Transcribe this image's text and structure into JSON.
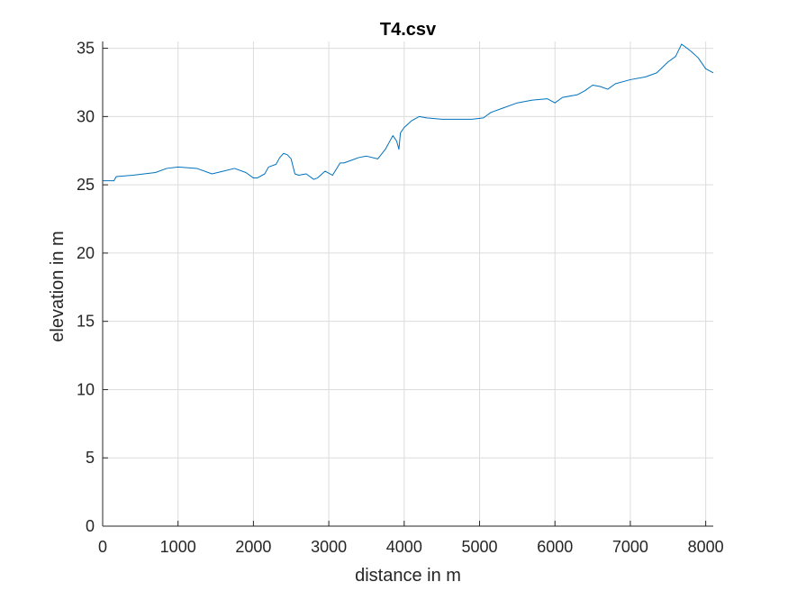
{
  "chart_data": {
    "type": "line",
    "title": "T4.csv",
    "xlabel": "distance in m",
    "ylabel": "elevation in m",
    "xlim": [
      0,
      8100
    ],
    "ylim": [
      0,
      35.5
    ],
    "x_ticks": [
      0,
      1000,
      2000,
      3000,
      4000,
      5000,
      6000,
      7000,
      8000
    ],
    "y_ticks": [
      0,
      5,
      10,
      15,
      20,
      25,
      30,
      35
    ],
    "grid": true,
    "colors": {
      "series": "#0072BD",
      "grid": "#dcdcdc",
      "axis": "#262626"
    },
    "series": [
      {
        "x": [
          0,
          150,
          180,
          400,
          700,
          850,
          1000,
          1250,
          1450,
          1600,
          1750,
          1900,
          2000,
          2050,
          2150,
          2200,
          2300,
          2350,
          2400,
          2450,
          2500,
          2550,
          2600,
          2700,
          2800,
          2850,
          2950,
          3050,
          3150,
          3200,
          3300,
          3400,
          3500,
          3650,
          3750,
          3850,
          3900,
          3930,
          3950,
          4000,
          4100,
          4200,
          4300,
          4500,
          4700,
          4900,
          5050,
          5150,
          5300,
          5500,
          5700,
          5900,
          6000,
          6100,
          6300,
          6400,
          6500,
          6600,
          6700,
          6800,
          7000,
          7200,
          7350,
          7500,
          7600,
          7680,
          7800,
          7900,
          8000,
          8100
        ],
        "y": [
          25.3,
          25.3,
          25.6,
          25.7,
          25.9,
          26.2,
          26.3,
          26.2,
          25.8,
          26.0,
          26.2,
          25.9,
          25.5,
          25.5,
          25.8,
          26.3,
          26.5,
          27.0,
          27.3,
          27.2,
          26.9,
          25.8,
          25.7,
          25.8,
          25.4,
          25.5,
          26.0,
          25.7,
          26.6,
          26.6,
          26.8,
          27.0,
          27.1,
          26.9,
          27.6,
          28.6,
          28.2,
          27.6,
          28.8,
          29.2,
          29.7,
          30.0,
          29.9,
          29.8,
          29.8,
          29.8,
          29.9,
          30.3,
          30.6,
          31.0,
          31.2,
          31.3,
          31.0,
          31.4,
          31.6,
          31.9,
          32.3,
          32.2,
          32.0,
          32.4,
          32.7,
          32.9,
          33.2,
          34.0,
          34.4,
          35.3,
          34.8,
          34.3,
          33.5,
          33.2
        ]
      }
    ]
  }
}
